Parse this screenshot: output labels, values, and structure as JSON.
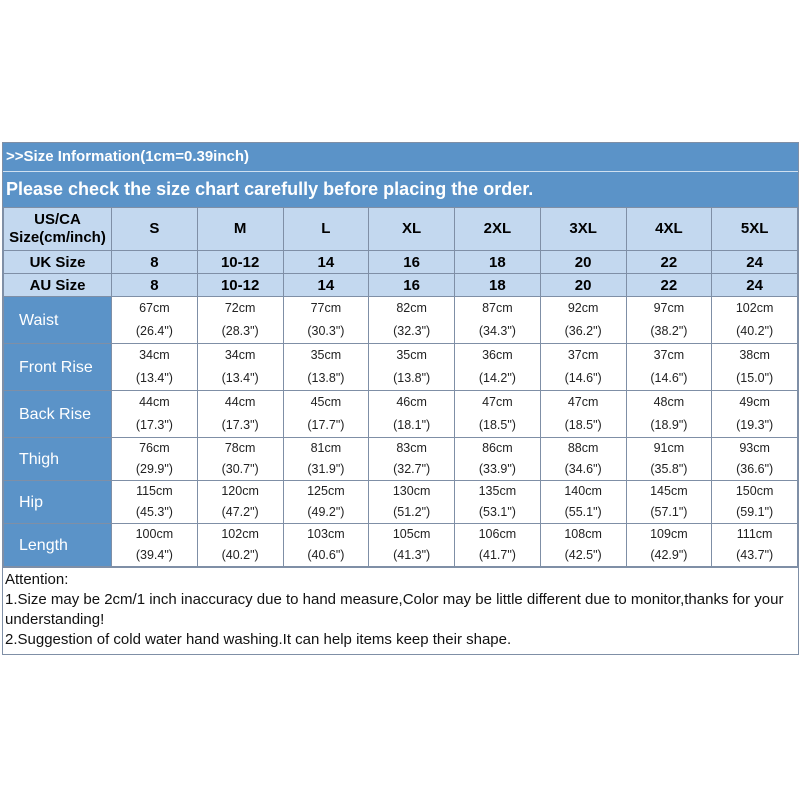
{
  "info_title": ">>Size Information(1cm=0.39inch)",
  "notice": "Please check the size chart carefully before placing the order.",
  "header_label_line1": "US/CA",
  "header_label_line2": "Size(cm/inch)",
  "sizes": [
    "S",
    "M",
    "L",
    "XL",
    "2XL",
    "3XL",
    "4XL",
    "5XL"
  ],
  "uk_label": "UK Size",
  "uk_sizes": [
    "8",
    "10-12",
    "14",
    "16",
    "18",
    "20",
    "22",
    "24"
  ],
  "au_label": "AU Size",
  "au_sizes": [
    "8",
    "10-12",
    "14",
    "16",
    "18",
    "20",
    "22",
    "24"
  ],
  "measurements": [
    {
      "label": "Waist",
      "cm": [
        "67cm",
        "72cm",
        "77cm",
        "82cm",
        "87cm",
        "92cm",
        "97cm",
        "102cm"
      ],
      "inch": [
        "(26.4\")",
        "(28.3\")",
        "(30.3\")",
        "(32.3\")",
        "(34.3\")",
        "(36.2\")",
        "(38.2\")",
        "(40.2\")"
      ]
    },
    {
      "label": "Front Rise",
      "cm": [
        "34cm",
        "34cm",
        "35cm",
        "35cm",
        "36cm",
        "37cm",
        "37cm",
        "38cm"
      ],
      "inch": [
        "(13.4\")",
        "(13.4\")",
        "(13.8\")",
        "(13.8\")",
        "(14.2\")",
        "(14.6\")",
        "(14.6\")",
        "(15.0\")"
      ]
    },
    {
      "label": "Back Rise",
      "cm": [
        "44cm",
        "44cm",
        "45cm",
        "46cm",
        "47cm",
        "47cm",
        "48cm",
        "49cm"
      ],
      "inch": [
        "(17.3\")",
        "(17.3\")",
        "(17.7\")",
        "(18.1\")",
        "(18.5\")",
        "(18.5\")",
        "(18.9\")",
        "(19.3\")"
      ]
    },
    {
      "label": "Thigh",
      "cm": [
        "76cm",
        "78cm",
        "81cm",
        "83cm",
        "86cm",
        "88cm",
        "91cm",
        "93cm"
      ],
      "inch": [
        "(29.9\")",
        "(30.7\")",
        "(31.9\")",
        "(32.7\")",
        "(33.9\")",
        "(34.6\")",
        "(35.8\")",
        "(36.6\")"
      ]
    },
    {
      "label": "Hip",
      "cm": [
        "115cm",
        "120cm",
        "125cm",
        "130cm",
        "135cm",
        "140cm",
        "145cm",
        "150cm"
      ],
      "inch": [
        "(45.3\")",
        "(47.2\")",
        "(49.2\")",
        "(51.2\")",
        "(53.1\")",
        "(55.1\")",
        "(57.1\")",
        "(59.1\")"
      ]
    },
    {
      "label": "Length",
      "cm": [
        "100cm",
        "102cm",
        "103cm",
        "105cm",
        "106cm",
        "108cm",
        "109cm",
        "111cm"
      ],
      "inch": [
        "(39.4\")",
        "(40.2\")",
        "(40.6\")",
        "(41.3\")",
        "(41.7\")",
        "(42.5\")",
        "(42.9\")",
        "(43.7\")"
      ]
    }
  ],
  "attention_title": "Attention:",
  "attention_items": [
    "1.Size may be 2cm/1 inch inaccuracy due to hand measure,Color may be little different due to monitor,thanks for your understanding!",
    "2.Suggestion of cold water hand washing.It can help items keep their shape."
  ],
  "colors": {
    "header_blue": "#5b93c8",
    "cell_light_blue": "#c3d8ef"
  }
}
